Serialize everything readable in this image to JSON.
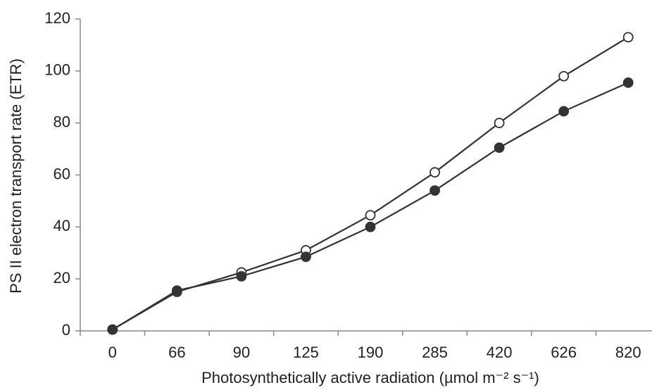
{
  "chart_data": {
    "type": "line",
    "x_label": "Photosynthetically active radiation (µmol m⁻² s⁻¹)",
    "y_label": "PS II electron transport rate (ETR)",
    "categories": [
      "0",
      "66",
      "90",
      "125",
      "190",
      "285",
      "420",
      "626",
      "820"
    ],
    "series": [
      {
        "color": "#333333",
        "marker": "open",
        "values": [
          0.5,
          15,
          22.5,
          31,
          44.5,
          61,
          80,
          98,
          113
        ]
      },
      {
        "color": "#333333",
        "marker": "filled",
        "values": [
          0.5,
          15.5,
          21,
          28.5,
          40,
          54,
          70.5,
          84.5,
          95.5
        ]
      }
    ],
    "ylim": [
      0,
      120
    ],
    "yticks": [
      0,
      20,
      40,
      60,
      80,
      100,
      120
    ],
    "grid": false
  }
}
